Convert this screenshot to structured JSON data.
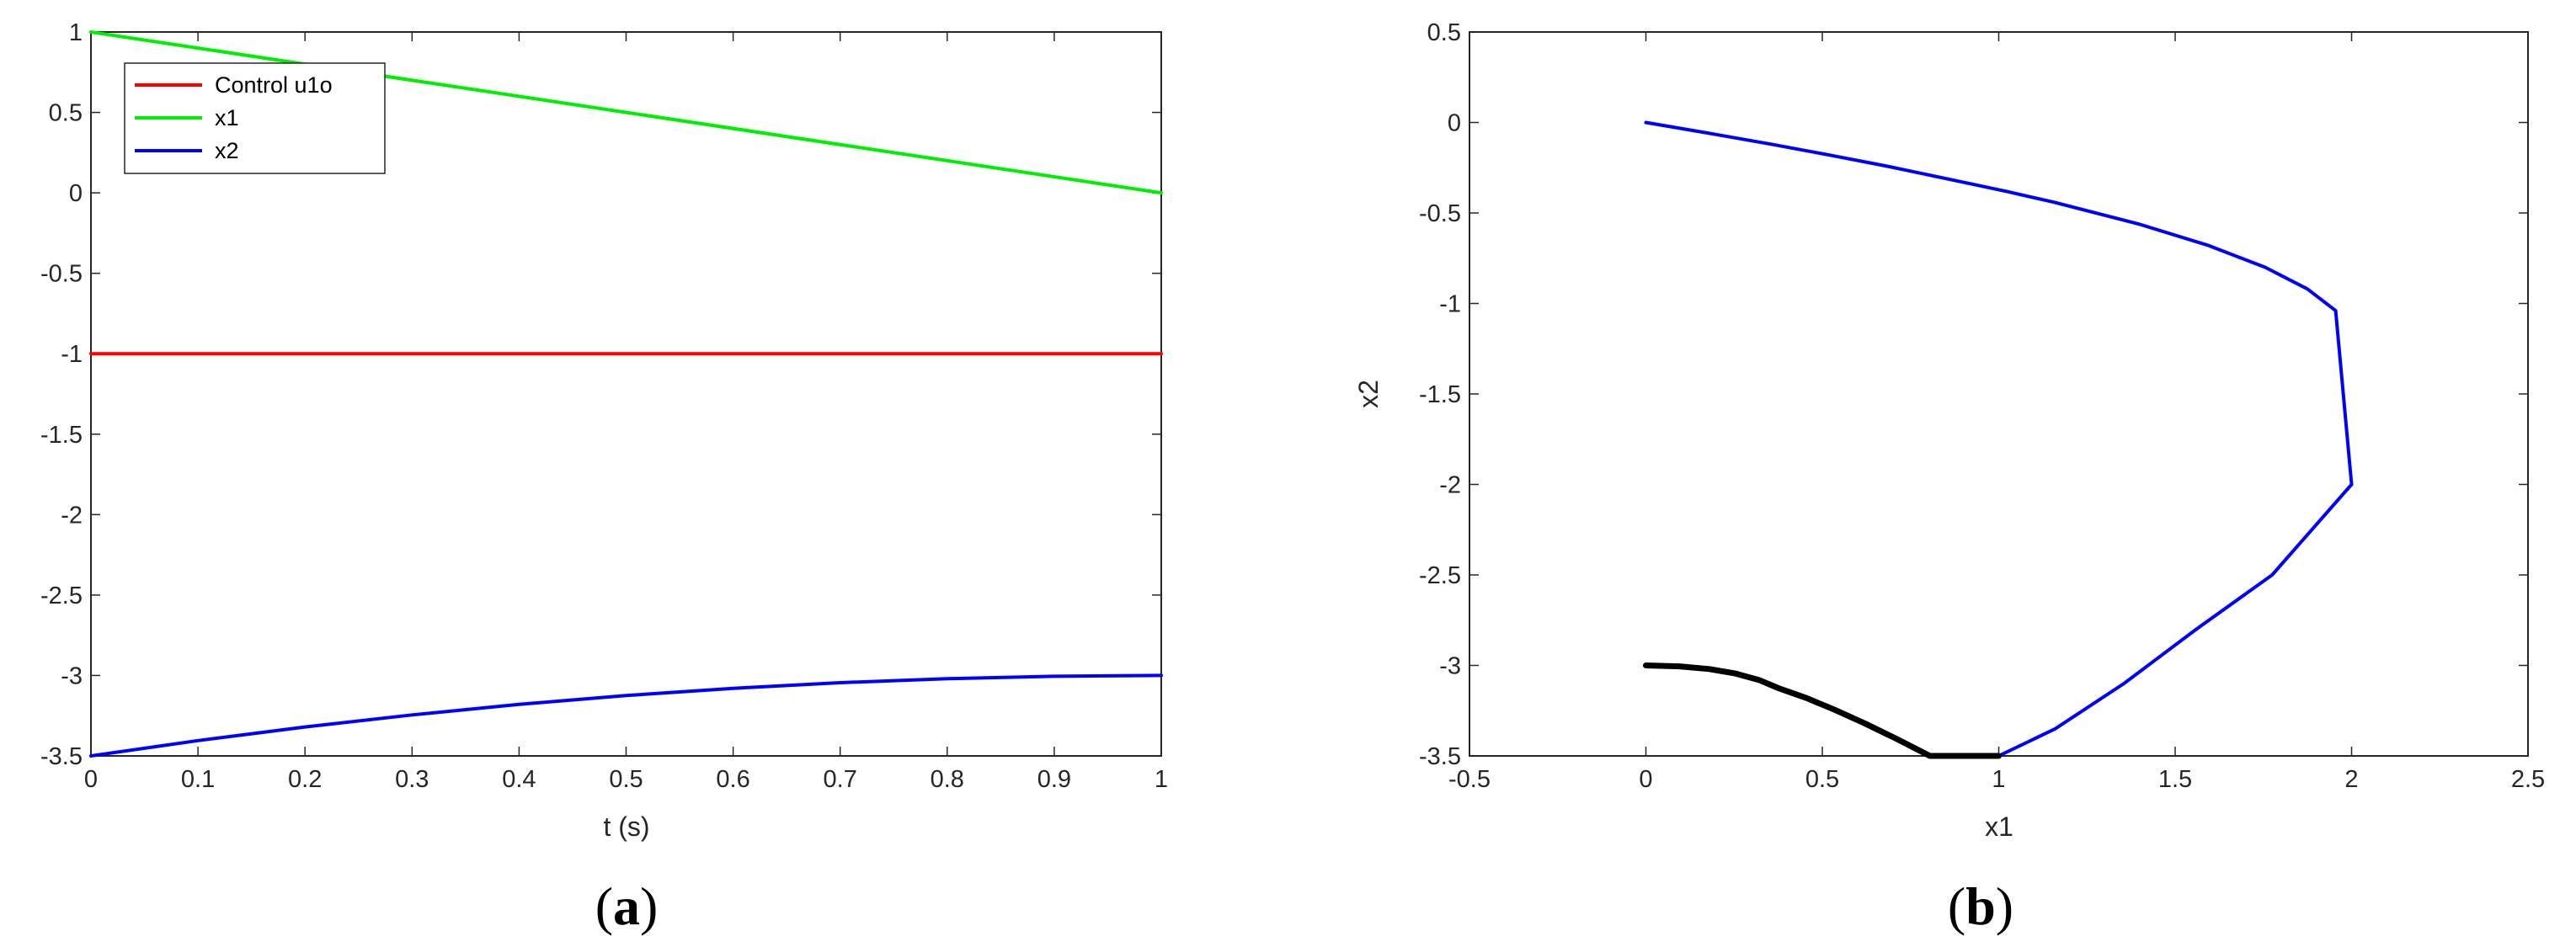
{
  "chart_data": [
    {
      "type": "line",
      "panel_label": "(a)",
      "xlabel": "t (s)",
      "ylabel": "",
      "xlim": [
        0,
        1
      ],
      "ylim": [
        -3.5,
        1
      ],
      "xticks": [
        "0",
        "0.1",
        "0.2",
        "0.3",
        "0.4",
        "0.5",
        "0.6",
        "0.7",
        "0.8",
        "0.9",
        "1"
      ],
      "yticks": [
        "1",
        "0.5",
        "0",
        "-0.5",
        "-1",
        "-1.5",
        "-2",
        "-2.5",
        "-3",
        "-3.5"
      ],
      "grid": false,
      "legend_position": "top-left",
      "series": [
        {
          "name": "Control u1o",
          "color": "#ff0000",
          "x": [
            0,
            1
          ],
          "y": [
            -1,
            -1
          ]
        },
        {
          "name": "x1",
          "color": "#00ee00",
          "x": [
            0,
            1
          ],
          "y": [
            1,
            0
          ]
        },
        {
          "name": "x2",
          "color": "#0000ff",
          "x": [
            0,
            0.1,
            0.2,
            0.3,
            0.4,
            0.5,
            0.6,
            0.7,
            0.8,
            0.9,
            1
          ],
          "y": [
            -3.5,
            -3.405,
            -3.32,
            -3.245,
            -3.18,
            -3.125,
            -3.08,
            -3.045,
            -3.02,
            -3.005,
            -3.0
          ]
        }
      ]
    },
    {
      "type": "line",
      "panel_label": "(b)",
      "xlabel": "x1",
      "ylabel": "x2",
      "xlim": [
        -0.5,
        2.5
      ],
      "ylim": [
        -3.5,
        0.5
      ],
      "xticks": [
        "-0.5",
        "0",
        "0.5",
        "1",
        "1.5",
        "2",
        "2.5"
      ],
      "yticks": [
        "0.5",
        "0",
        "-0.5",
        "-1",
        "-1.5",
        "-2",
        "-2.5",
        "-3",
        "-3.5"
      ],
      "grid": false,
      "series": [
        {
          "color": "#0000ff",
          "x": [
            0,
            0.18,
            0.355,
            0.52,
            0.68,
            0.875,
            1.02,
            1.155,
            1.395,
            1.595,
            1.755,
            1.875,
            1.955,
            2.0
          ],
          "y": [
            0,
            -0.06,
            -0.12,
            -0.18,
            -0.24,
            -0.32,
            -0.38,
            -0.44,
            -0.56,
            -0.68,
            -0.8,
            -0.92,
            -1.04,
            -2.0
          ]
        },
        {
          "color": "#0000ff",
          "x": [
            2.0,
            1.775,
            1.56,
            1.355,
            1.16,
            1.0
          ],
          "y": [
            -2.0,
            -2.5,
            -2.8,
            -3.1,
            -3.35,
            -3.5
          ]
        },
        {
          "color": "#000000",
          "x": [
            0,
            0.095,
            0.18,
            0.255,
            0.32,
            0.375,
            0.455,
            0.535,
            0.62,
            0.71,
            0.805,
            0.9,
            1.0
          ],
          "y": [
            -3.0,
            -3.005,
            -3.02,
            -3.045,
            -3.08,
            -3.125,
            -3.18,
            -3.245,
            -3.32,
            -3.405,
            -3.5,
            -3.5,
            -3.5
          ]
        }
      ]
    }
  ]
}
